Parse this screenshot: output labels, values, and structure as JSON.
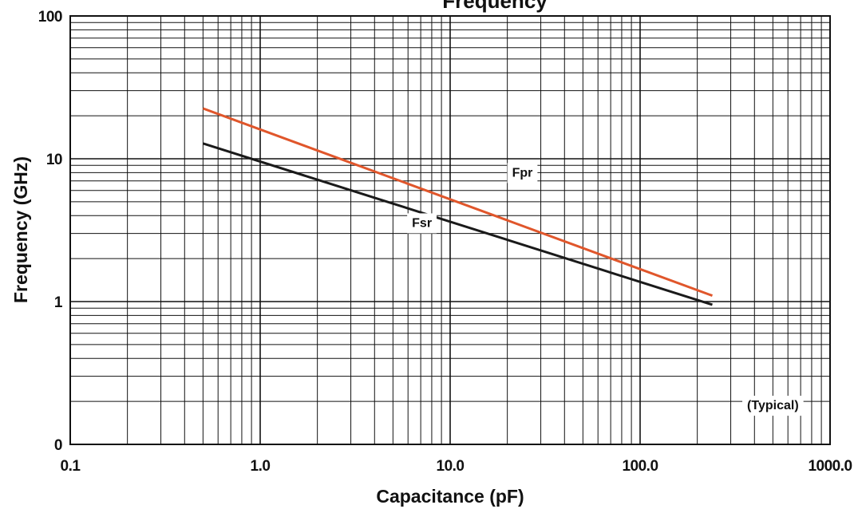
{
  "chart_data": {
    "type": "line",
    "title": "Frequency",
    "xlabel": "Capacitance (pF)",
    "ylabel": "Frequency (GHz)",
    "x_scale": "log",
    "y_scale": "log",
    "xlim": [
      0.1,
      1000
    ],
    "ylim": [
      0.1,
      100
    ],
    "x_ticks": [
      {
        "value": 0.1,
        "label": "0.1"
      },
      {
        "value": 1,
        "label": "1.0"
      },
      {
        "value": 10,
        "label": "10.0"
      },
      {
        "value": 100,
        "label": "100.0"
      },
      {
        "value": 1000,
        "label": "1000.0"
      }
    ],
    "y_ticks": [
      {
        "value": 0.1,
        "label": "0"
      },
      {
        "value": 1,
        "label": "1"
      },
      {
        "value": 10,
        "label": "10"
      },
      {
        "value": 100,
        "label": "100"
      }
    ],
    "grid": true,
    "series": [
      {
        "name": "Fpr",
        "color": "#e0562b",
        "x": [
          0.5,
          240
        ],
        "y": [
          22.5,
          1.1
        ]
      },
      {
        "name": "Fsr",
        "color": "#1a1a1a",
        "x": [
          0.5,
          240
        ],
        "y": [
          12.8,
          0.95
        ]
      }
    ],
    "annotations": [
      {
        "text": "Fpr",
        "x": 24,
        "y": 8.1
      },
      {
        "text": "Fsr",
        "x": 7.1,
        "y": 3.6
      },
      {
        "text": "(Typical)",
        "x": 500,
        "y": 0.19
      }
    ]
  }
}
